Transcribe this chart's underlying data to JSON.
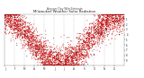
{
  "title": "Milwaukee Weather Solar Radiation",
  "subtitle": "Avg per Day W/m2/minute",
  "background_color": "#ffffff",
  "dot_color_main": "#cc0000",
  "dot_color_dark": "#111111",
  "x_min": 0,
  "x_max": 365,
  "y_min": 0,
  "y_max": 1.0,
  "month_starts": [
    1,
    32,
    60,
    91,
    121,
    152,
    182,
    213,
    244,
    274,
    305,
    335
  ],
  "month_labels": [
    "J",
    "F",
    "M",
    "A",
    "M",
    "J",
    "J",
    "A",
    "S",
    "O",
    "N",
    "D"
  ],
  "y_ticks": [
    0.1,
    0.2,
    0.3,
    0.4,
    0.5,
    0.6,
    0.7,
    0.8,
    0.9
  ],
  "y_tick_labels": [
    ".9",
    ".8",
    ".7",
    ".6",
    ".5",
    ".4",
    ".3",
    ".2",
    ".1"
  ]
}
